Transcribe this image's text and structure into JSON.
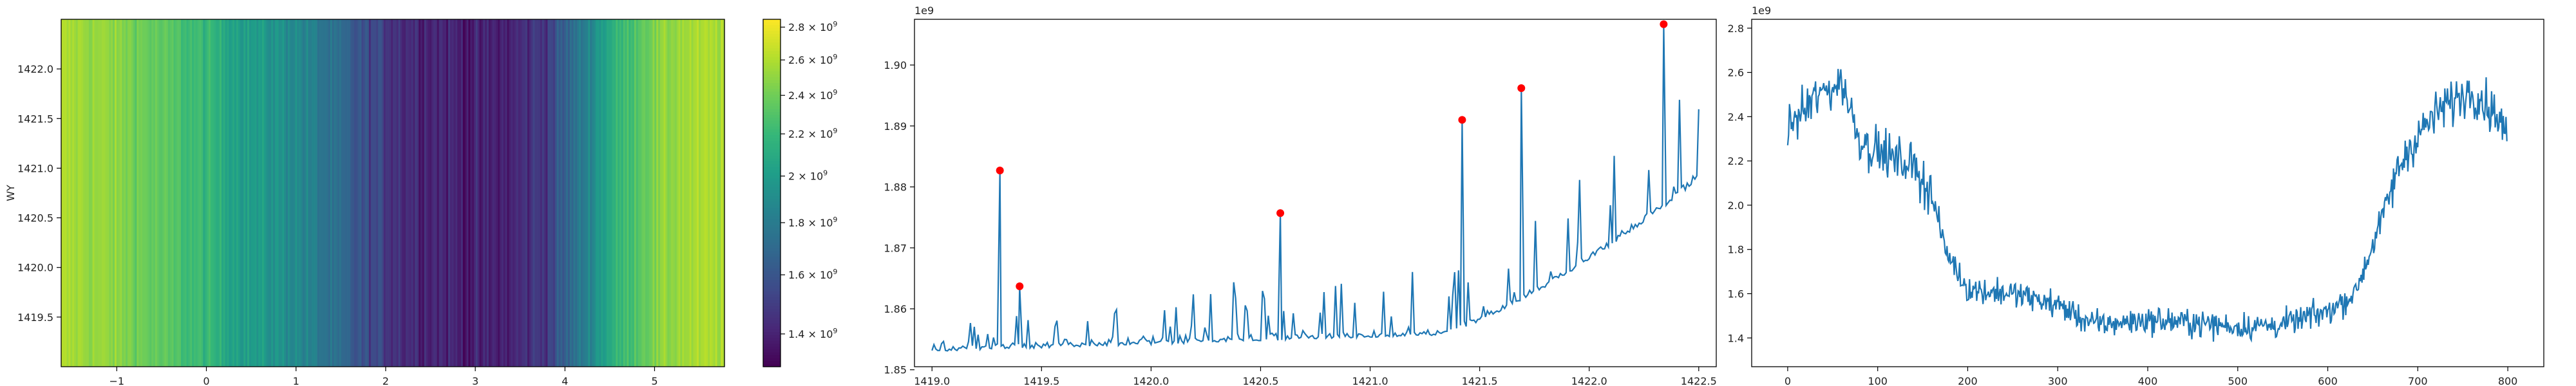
{
  "chart_data": [
    {
      "type": "heatmap",
      "ylabel": "WY",
      "xlim": [
        -1.62,
        5.78
      ],
      "ylim": [
        1419.0,
        1422.5
      ],
      "xticks": [
        -1,
        0,
        1,
        2,
        3,
        4,
        5
      ],
      "yticks": [
        1419.5,
        1420.0,
        1420.5,
        1421.0,
        1421.5,
        1422.0
      ],
      "colormap": "viridis",
      "colorbar": {
        "scale": "log",
        "range": [
          1300000000.0,
          2850000000.0
        ],
        "tick_values": [
          1400000000.0,
          1600000000.0,
          1800000000.0,
          2000000000.0,
          2200000000.0,
          2400000000.0,
          2600000000.0,
          2800000000.0
        ],
        "tick_mantissas": [
          "1.4",
          "1.6",
          "1.8",
          "2",
          "2.2",
          "2.4",
          "2.6",
          "2.8"
        ],
        "tick_suffix": "× 10",
        "tick_exponent": "9"
      }
    },
    {
      "type": "line",
      "offset_label": "1e9",
      "xlim": [
        1418.92,
        1422.58
      ],
      "ylim": [
        1.8505,
        1.9075
      ],
      "xticks": [
        1419.0,
        1419.5,
        1420.0,
        1420.5,
        1421.0,
        1421.5,
        1422.0,
        1422.5
      ],
      "yticks": [
        1.85,
        1.86,
        1.87,
        1.88,
        1.89,
        1.9
      ],
      "x_start": 1419.0,
      "x_end": 1422.5,
      "line_color": "#1f77b4",
      "marker_color": "#ff0000",
      "peaks": [
        {
          "x": 1419.31,
          "y": 1.8827
        },
        {
          "x": 1419.4,
          "y": 1.8637
        },
        {
          "x": 1420.59,
          "y": 1.8757
        },
        {
          "x": 1421.42,
          "y": 1.891
        },
        {
          "x": 1421.69,
          "y": 1.8962
        },
        {
          "x": 1422.34,
          "y": 1.9067
        }
      ]
    },
    {
      "type": "line",
      "offset_label": "1e9",
      "xlim": [
        -40,
        840
      ],
      "ylim": [
        1.27,
        2.84
      ],
      "xticks": [
        0,
        100,
        200,
        300,
        400,
        500,
        600,
        700,
        800
      ],
      "yticks": [
        1.4,
        1.6,
        1.8,
        2.0,
        2.2,
        2.4,
        2.6,
        2.8
      ],
      "n_points": 800,
      "line_color": "#1f77b4",
      "trend": [
        {
          "x": 0,
          "y": 2.35
        },
        {
          "x": 30,
          "y": 2.48
        },
        {
          "x": 60,
          "y": 2.56
        },
        {
          "x": 80,
          "y": 2.3
        },
        {
          "x": 110,
          "y": 2.22
        },
        {
          "x": 140,
          "y": 2.18
        },
        {
          "x": 160,
          "y": 2.05
        },
        {
          "x": 175,
          "y": 1.8
        },
        {
          "x": 200,
          "y": 1.62
        },
        {
          "x": 250,
          "y": 1.6
        },
        {
          "x": 300,
          "y": 1.55
        },
        {
          "x": 340,
          "y": 1.46
        },
        {
          "x": 400,
          "y": 1.48
        },
        {
          "x": 450,
          "y": 1.47
        },
        {
          "x": 500,
          "y": 1.45
        },
        {
          "x": 550,
          "y": 1.46
        },
        {
          "x": 600,
          "y": 1.52
        },
        {
          "x": 630,
          "y": 1.6
        },
        {
          "x": 650,
          "y": 1.82
        },
        {
          "x": 680,
          "y": 2.18
        },
        {
          "x": 700,
          "y": 2.32
        },
        {
          "x": 730,
          "y": 2.45
        },
        {
          "x": 760,
          "y": 2.52
        },
        {
          "x": 790,
          "y": 2.4
        },
        {
          "x": 800,
          "y": 2.3
        }
      ]
    }
  ]
}
